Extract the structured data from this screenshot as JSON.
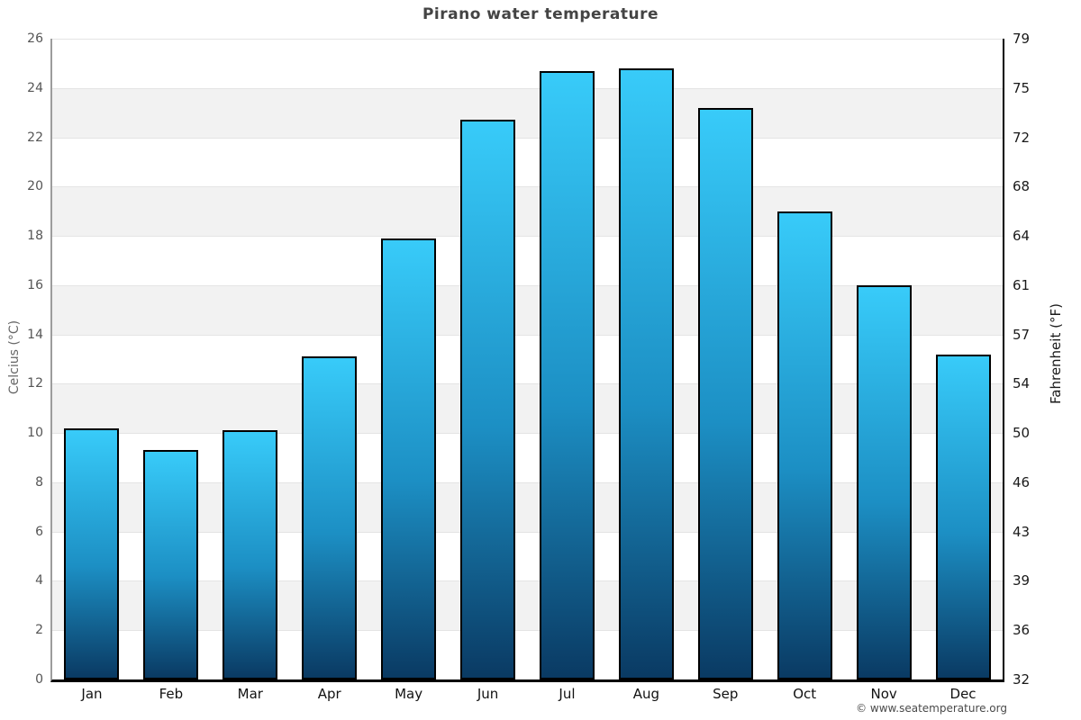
{
  "title": "Pirano water temperature",
  "axes": {
    "left_label": "Celcius (°C)",
    "right_label": "Fahrenheit (°F)"
  },
  "footer": {
    "copyright": "© www.seatemperature.org"
  },
  "chart_data": {
    "type": "bar",
    "title": "Pirano water temperature",
    "categories": [
      "Jan",
      "Feb",
      "Mar",
      "Apr",
      "May",
      "Jun",
      "Jul",
      "Aug",
      "Sep",
      "Oct",
      "Nov",
      "Dec"
    ],
    "values": [
      10.2,
      9.3,
      10.1,
      13.1,
      17.9,
      22.7,
      24.7,
      24.8,
      23.2,
      19.0,
      16.0,
      13.2
    ],
    "xlabel": "",
    "ylabel": "Celcius (°C)",
    "ylabel_right": "Fahrenheit (°F)",
    "ylim": [
      0,
      26
    ],
    "ytick_step": 2,
    "yticks_celsius": [
      0,
      2,
      4,
      6,
      8,
      10,
      12,
      14,
      16,
      18,
      20,
      22,
      24,
      26
    ],
    "yticks_fahrenheit": [
      "32",
      "36",
      "39",
      "43",
      "46",
      "50",
      "54",
      "57",
      "61",
      "64",
      "68",
      "72",
      "75",
      "79"
    ],
    "grid": "horizontal-bands-and-lines",
    "legend": "none",
    "colors": {
      "bar_gradient_top": "#38cbf9",
      "bar_gradient_bottom": "#0a3a63",
      "bar_border": "#000000",
      "band_fill": "#f2f2f2",
      "gridline": "#e4e4e4",
      "left_axis_line": "#9c9c9c",
      "right_axis_line": "#000000",
      "bottom_axis_line": "#000000",
      "title_color": "#444444"
    }
  }
}
